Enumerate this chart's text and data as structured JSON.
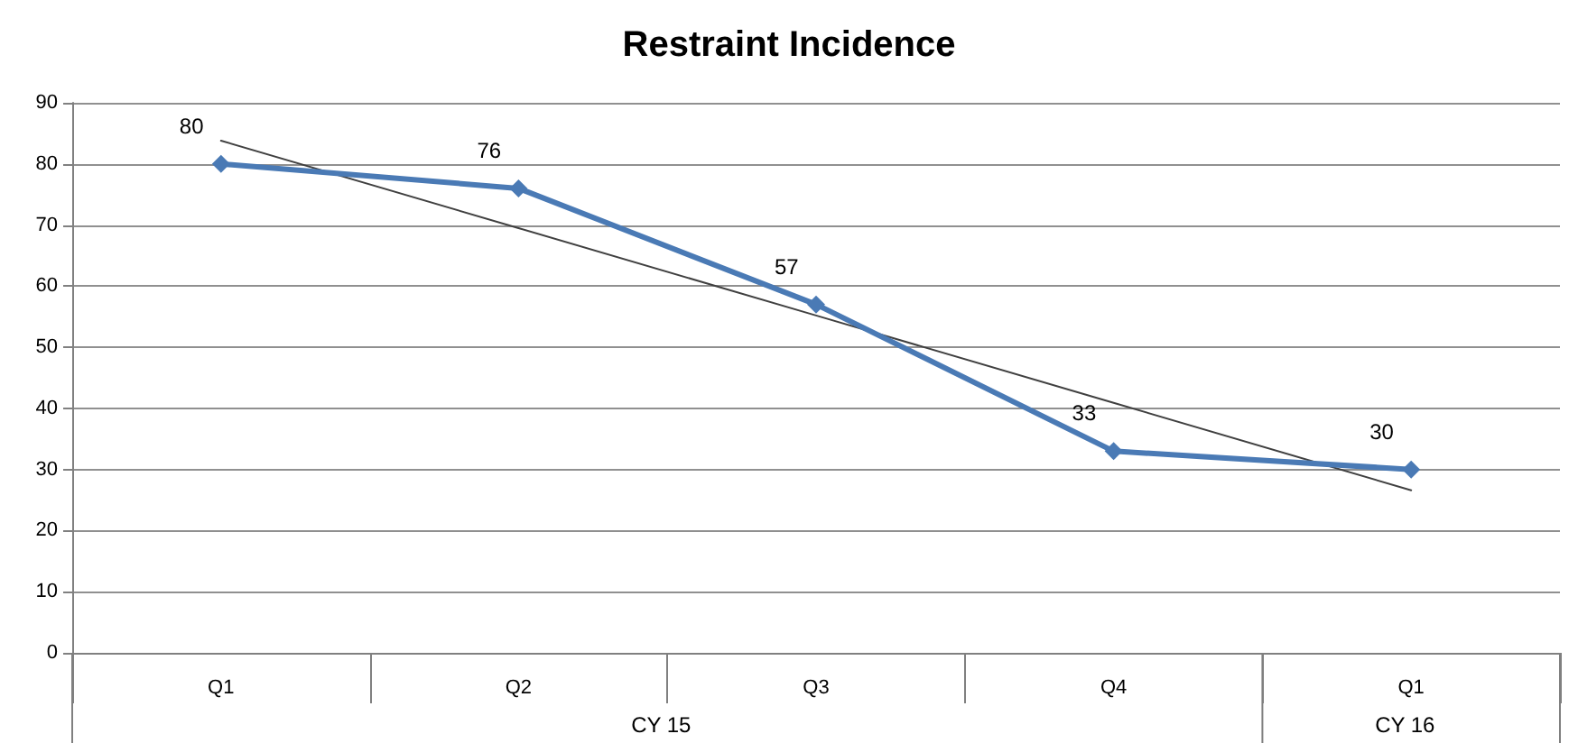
{
  "chart_data": {
    "type": "line",
    "title": "Restraint Incidence",
    "categories": [
      "Q1",
      "Q2",
      "Q3",
      "Q4",
      "Q1"
    ],
    "series": [
      {
        "color": "#4a7ab5",
        "values": [
          80,
          76,
          57,
          33,
          30
        ],
        "value_labels": [
          "80",
          "76",
          "57",
          "33",
          "30"
        ],
        "marker": "diamond"
      },
      {
        "color": "#404040",
        "values": [
          83.8,
          69.5,
          55.2,
          40.9,
          26.6
        ],
        "marker": "none"
      }
    ],
    "annotations": [
      "CY 15",
      "CY 16"
    ],
    "ylim": [
      0,
      90
    ],
    "yticks": [
      0,
      10,
      20,
      30,
      40,
      50,
      60,
      70,
      80,
      90
    ],
    "grid": "y",
    "line_style": "solid"
  }
}
